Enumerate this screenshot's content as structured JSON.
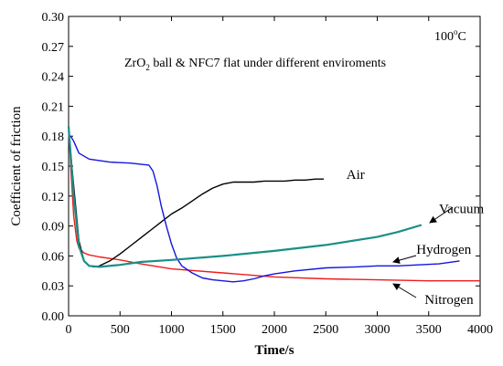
{
  "chart_data": {
    "type": "line",
    "xlabel": "Time/s",
    "ylabel": "Coefficient of friction",
    "xlim": [
      0,
      4000
    ],
    "ylim": [
      0.0,
      0.3
    ],
    "x_ticks": [
      0,
      500,
      1000,
      1500,
      2000,
      2500,
      3000,
      3500,
      4000
    ],
    "y_ticks": [
      "0.00",
      "0.03",
      "0.06",
      "0.09",
      "0.12",
      "0.15",
      "0.18",
      "0.21",
      "0.24",
      "0.27",
      "0.30"
    ],
    "grid": false,
    "annotations": {
      "temperature_main": "100",
      "temperature_sup": "o",
      "temperature_unit": "C",
      "title_pre": "ZrO",
      "title_sub": "2",
      "title_post": " ball & NFC7 flat under different enviroments"
    },
    "series": [
      {
        "name": "Air",
        "color": "#000000",
        "label_pos": [
          2700,
          0.137
        ],
        "x": [
          0,
          50,
          100,
          150,
          200,
          250,
          300,
          400,
          500,
          600,
          700,
          800,
          900,
          1000,
          1100,
          1200,
          1300,
          1400,
          1500,
          1600,
          1700,
          1800,
          1900,
          2000,
          2100,
          2200,
          2300,
          2400,
          2480
        ],
        "y": [
          0.185,
          0.13,
          0.075,
          0.055,
          0.05,
          0.049,
          0.05,
          0.055,
          0.062,
          0.07,
          0.078,
          0.086,
          0.094,
          0.102,
          0.108,
          0.115,
          0.122,
          0.128,
          0.132,
          0.134,
          0.134,
          0.134,
          0.135,
          0.135,
          0.135,
          0.136,
          0.136,
          0.137,
          0.137
        ]
      },
      {
        "name": "Vacuum",
        "color": "#1a8f86",
        "label_pos": [
          3600,
          0.103
        ],
        "x": [
          0,
          50,
          100,
          150,
          200,
          300,
          500,
          700,
          1000,
          1500,
          2000,
          2500,
          3000,
          3200,
          3430
        ],
        "y": [
          0.19,
          0.12,
          0.07,
          0.055,
          0.05,
          0.049,
          0.051,
          0.054,
          0.056,
          0.06,
          0.065,
          0.071,
          0.079,
          0.084,
          0.091
        ]
      },
      {
        "name": "Hydrogen",
        "color": "#1515e0",
        "label_pos": [
          3380,
          0.062
        ],
        "x": [
          0,
          20,
          50,
          100,
          200,
          400,
          600,
          780,
          820,
          860,
          900,
          950,
          1000,
          1050,
          1100,
          1200,
          1300,
          1400,
          1500,
          1600,
          1700,
          1800,
          1900,
          2000,
          2200,
          2500,
          2800,
          3000,
          3200,
          3400,
          3600,
          3800
        ],
        "y": [
          0.18,
          0.18,
          0.175,
          0.163,
          0.157,
          0.154,
          0.153,
          0.151,
          0.145,
          0.13,
          0.11,
          0.09,
          0.072,
          0.058,
          0.05,
          0.043,
          0.038,
          0.036,
          0.035,
          0.034,
          0.035,
          0.037,
          0.04,
          0.042,
          0.045,
          0.048,
          0.049,
          0.05,
          0.05,
          0.051,
          0.052,
          0.055
        ]
      },
      {
        "name": "Nitrogen",
        "color": "#ee1c1c",
        "label_pos": [
          3460,
          0.012
        ],
        "x": [
          0,
          20,
          50,
          80,
          100,
          150,
          200,
          300,
          500,
          700,
          1000,
          1500,
          2000,
          2500,
          3000,
          3500,
          4000
        ],
        "y": [
          0.19,
          0.15,
          0.1,
          0.075,
          0.068,
          0.063,
          0.061,
          0.059,
          0.056,
          0.052,
          0.047,
          0.043,
          0.039,
          0.037,
          0.036,
          0.035,
          0.035
        ]
      }
    ]
  }
}
